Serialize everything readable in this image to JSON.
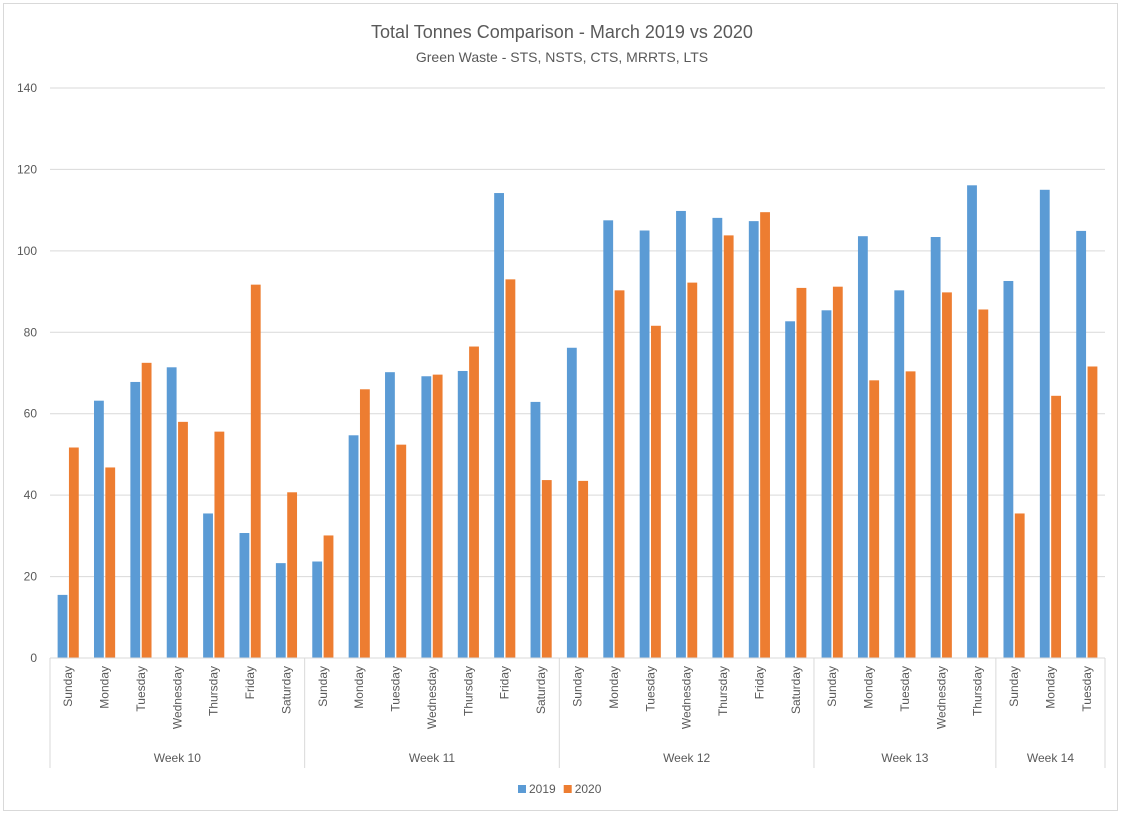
{
  "chart_data": {
    "type": "bar",
    "title": "Total Tonnes Comparison - March 2019 vs 2020",
    "subtitle": "Green Waste - STS, NSTS, CTS, MRRTS, LTS",
    "groups": [
      {
        "name": "Week 10",
        "categories": [
          "Sunday",
          "Monday",
          "Tuesday",
          "Wednesday",
          "Thursday",
          "Friday",
          "Saturday"
        ]
      },
      {
        "name": "Week 11",
        "categories": [
          "Sunday",
          "Monday",
          "Tuesday",
          "Wednesday",
          "Thursday",
          "Friday",
          "Saturday"
        ]
      },
      {
        "name": "Week 12",
        "categories": [
          "Sunday",
          "Monday",
          "Tuesday",
          "Wednesday",
          "Thursday",
          "Friday",
          "Saturday"
        ]
      },
      {
        "name": "Week 13",
        "categories": [
          "Sunday",
          "Monday",
          "Tuesday",
          "Wednesday",
          "Thursday"
        ]
      },
      {
        "name": "Week 14",
        "categories": [
          "Sunday",
          "Monday",
          "Tuesday"
        ]
      }
    ],
    "series": [
      {
        "name": "2019",
        "color": "#5b9bd5",
        "values": [
          15.5,
          63.2,
          67.8,
          71.4,
          35.5,
          30.7,
          23.3,
          23.7,
          54.7,
          70.2,
          69.2,
          70.5,
          114.2,
          62.9,
          76.2,
          107.5,
          105.0,
          109.8,
          108.1,
          107.3,
          82.7,
          85.4,
          103.6,
          90.3,
          103.4,
          116.1,
          92.6,
          115.0,
          104.9
        ]
      },
      {
        "name": "2020",
        "color": "#ed7d31",
        "values": [
          51.7,
          46.8,
          72.5,
          58.0,
          55.6,
          91.7,
          40.7,
          30.1,
          66.0,
          52.4,
          69.6,
          76.5,
          93.0,
          43.7,
          43.5,
          90.3,
          81.6,
          92.2,
          103.8,
          109.5,
          90.9,
          91.2,
          68.2,
          70.4,
          89.8,
          85.6,
          35.5,
          64.4,
          71.6
        ]
      }
    ],
    "ylim": [
      0,
      140
    ],
    "yticks": [
      0,
      20,
      40,
      60,
      80,
      100,
      120,
      140
    ],
    "grid": true,
    "legend": "bottom"
  }
}
